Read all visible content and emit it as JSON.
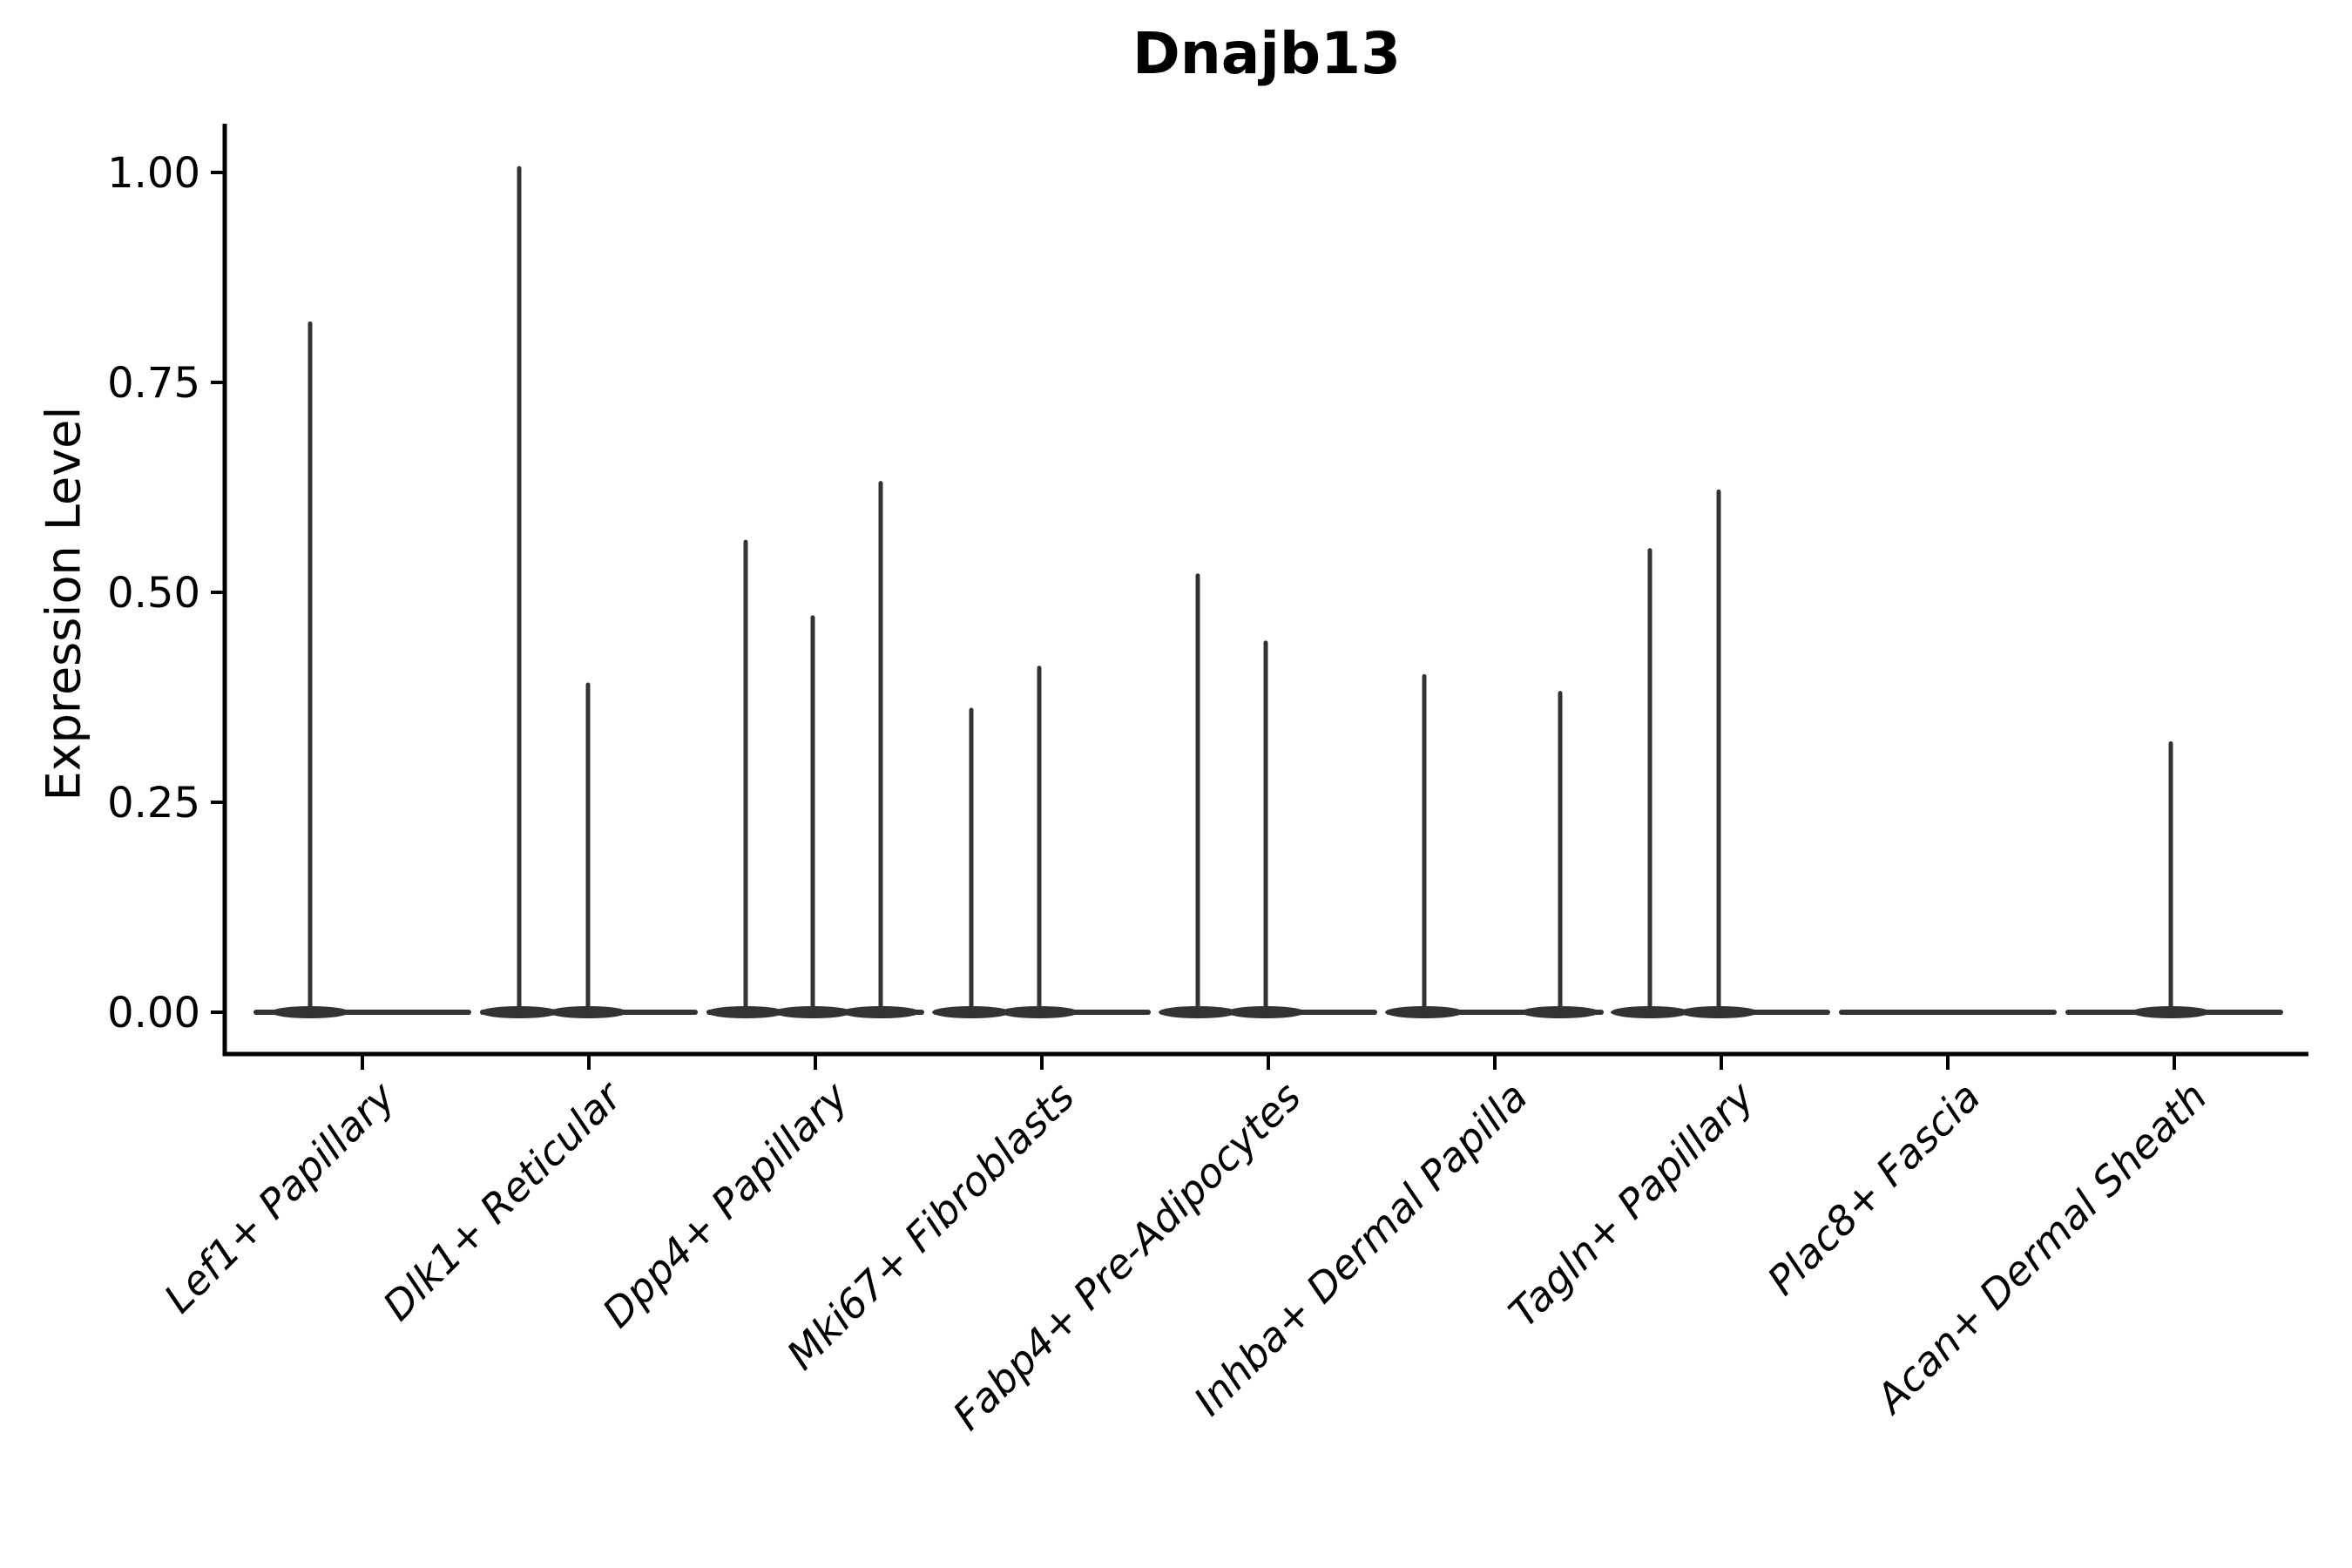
{
  "chart_data": {
    "type": "violin",
    "title": "Dnajb13",
    "xlabel": "",
    "ylabel": "Expression Level",
    "ylim": [
      0,
      1.05
    ],
    "grid": false,
    "legend": null,
    "yticks": [
      {
        "label": "0.00",
        "value": 0.0
      },
      {
        "label": "0.25",
        "value": 0.25
      },
      {
        "label": "0.50",
        "value": 0.5
      },
      {
        "label": "0.75",
        "value": 0.75
      },
      {
        "label": "1.00",
        "value": 1.0
      }
    ],
    "x_tick_rotation_deg": 45,
    "note": "Violin plot of single-gene expression per cluster; each violin is flat at 0 with thin spikes rising to the max expression value(s). dx = horizontal offset of each spike from the category center in px.",
    "categories": [
      {
        "label": "Lef1+ Papillary",
        "violins": [
          {
            "dx": -60,
            "max": 0.82
          }
        ]
      },
      {
        "label": "Dlk1+ Reticular",
        "violins": [
          {
            "dx": -80,
            "max": 1.005
          },
          {
            "dx": -1,
            "max": 0.39
          }
        ]
      },
      {
        "label": "Dpp4+ Papillary",
        "violins": [
          {
            "dx": -80,
            "max": 0.56
          },
          {
            "dx": -3,
            "max": 0.47
          },
          {
            "dx": 75,
            "max": 0.63
          }
        ]
      },
      {
        "label": "Mki67+ Fibroblasts",
        "violins": [
          {
            "dx": -81,
            "max": 0.36
          },
          {
            "dx": -3,
            "max": 0.41
          }
        ]
      },
      {
        "label": "Fabp4+ Pre-Adipocytes",
        "violins": [
          {
            "dx": -81,
            "max": 0.52
          },
          {
            "dx": -3,
            "max": 0.44
          }
        ]
      },
      {
        "label": "Inhba+ Dermal Papilla",
        "violins": [
          {
            "dx": -81,
            "max": 0.4
          },
          {
            "dx": 75,
            "max": 0.38
          }
        ]
      },
      {
        "label": "Tagln+ Papillary",
        "violins": [
          {
            "dx": -82,
            "max": 0.55
          },
          {
            "dx": -3,
            "max": 0.62
          }
        ]
      },
      {
        "label": "Plac8+ Fascia",
        "violins": []
      },
      {
        "label": "Acan+ Dermal Sheath",
        "violins": [
          {
            "dx": -4,
            "max": 0.32
          }
        ]
      }
    ],
    "colors": {
      "axis": "#000000",
      "text": "#000000",
      "violin": "#333333",
      "background": "#ffffff"
    }
  }
}
